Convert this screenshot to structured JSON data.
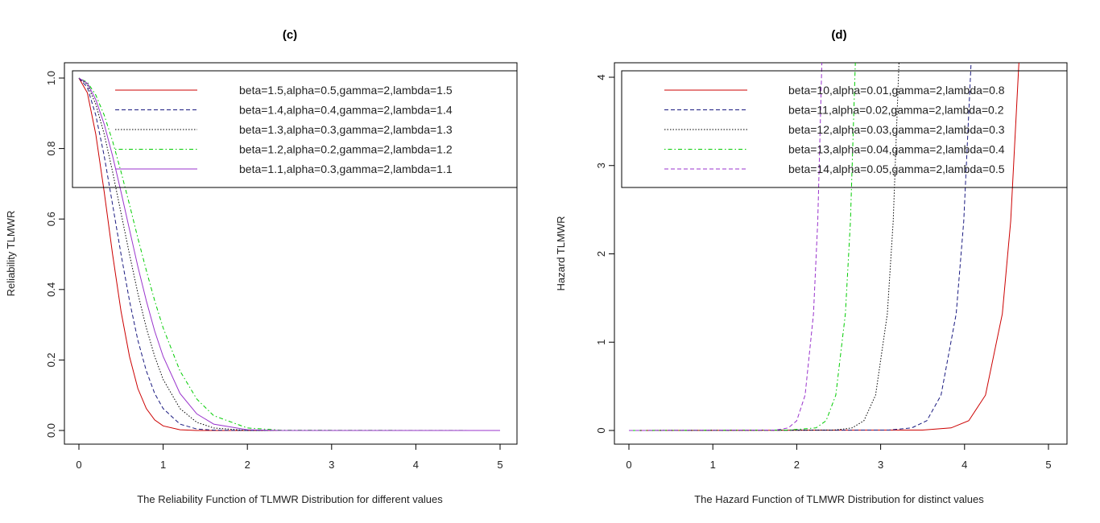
{
  "chart_data": [
    {
      "type": "line",
      "title": "(c)",
      "xlabel": "The Reliability Function of TLMWR Distribution for different values",
      "ylabel": "Reliability TLMWR",
      "xlim": [
        0,
        5
      ],
      "ylim": [
        0,
        1
      ],
      "xticks": [
        "0",
        "1",
        "2",
        "3",
        "4",
        "5"
      ],
      "yticks": [
        "0.0",
        "0.2",
        "0.4",
        "0.6",
        "0.8",
        "1.0"
      ],
      "grid": false,
      "legend_position": "top",
      "series": [
        {
          "name": "beta=1.5,alpha=0.5,gamma=2,lambda=1.5",
          "color": "#cc0000",
          "style": "solid",
          "x": [
            0,
            0.1,
            0.2,
            0.3,
            0.4,
            0.5,
            0.6,
            0.7,
            0.8,
            0.9,
            1.0,
            1.2,
            1.4,
            5
          ],
          "y": [
            1,
            0.958,
            0.841,
            0.677,
            0.5,
            0.338,
            0.21,
            0.119,
            0.062,
            0.03,
            0.013,
            0.002,
            0,
            0
          ]
        },
        {
          "name": "beta=1.4,alpha=0.4,gamma=2,lambda=1.4",
          "color": "#1a1a80",
          "style": "dashed",
          "x": [
            0,
            0.1,
            0.2,
            0.3,
            0.4,
            0.5,
            0.6,
            0.7,
            0.8,
            0.9,
            1.0,
            1.2,
            1.4,
            1.6,
            2.0,
            5
          ],
          "y": [
            1,
            0.973,
            0.895,
            0.779,
            0.641,
            0.5,
            0.368,
            0.256,
            0.169,
            0.105,
            0.062,
            0.018,
            0.004,
            0.001,
            0,
            0
          ]
        },
        {
          "name": "beta=1.3,alpha=0.3,gamma=2,lambda=1.3",
          "color": "#000000",
          "style": "dotted",
          "x": [
            0,
            0.1,
            0.2,
            0.3,
            0.4,
            0.5,
            0.6,
            0.7,
            0.8,
            0.9,
            1.0,
            1.2,
            1.4,
            1.6,
            2.0,
            5
          ],
          "y": [
            1,
            0.981,
            0.926,
            0.841,
            0.734,
            0.617,
            0.5,
            0.389,
            0.291,
            0.21,
            0.145,
            0.062,
            0.023,
            0.007,
            0,
            0
          ]
        },
        {
          "name": "beta=1.2,alpha=0.2,gamma=2,lambda=1.2",
          "color": "#00cc00",
          "style": "dotdash",
          "x": [
            0,
            0.1,
            0.2,
            0.3,
            0.4,
            0.5,
            0.6,
            0.7,
            0.8,
            0.9,
            1.0,
            1.2,
            1.4,
            1.6,
            2.0,
            2.4,
            5
          ],
          "y": [
            1,
            0.988,
            0.952,
            0.895,
            0.821,
            0.734,
            0.641,
            0.546,
            0.454,
            0.368,
            0.291,
            0.169,
            0.089,
            0.042,
            0.007,
            0.001,
            0
          ]
        },
        {
          "name": "beta=1.1,alpha=0.3,gamma=2,lambda=1.1",
          "color": "#9933cc",
          "style": "solid",
          "x": [
            0,
            0.1,
            0.2,
            0.3,
            0.4,
            0.5,
            0.6,
            0.7,
            0.8,
            0.9,
            1.0,
            1.2,
            1.4,
            1.6,
            2.0,
            2.4,
            5
          ],
          "y": [
            1,
            0.985,
            0.939,
            0.869,
            0.779,
            0.677,
            0.57,
            0.465,
            0.368,
            0.282,
            0.21,
            0.105,
            0.047,
            0.018,
            0.002,
            0,
            0
          ]
        }
      ]
    },
    {
      "type": "line",
      "title": "(d)",
      "xlabel": "The Hazard Function of TLMWR Distribution for distinct values",
      "ylabel": "Hazard TLMWR",
      "xlim": [
        0,
        5
      ],
      "ylim": [
        0,
        4.2
      ],
      "xticks": [
        "0",
        "1",
        "2",
        "3",
        "4",
        "5"
      ],
      "yticks": [
        "0",
        "1",
        "2",
        "3",
        "4"
      ],
      "grid": false,
      "legend_position": "top",
      "series": [
        {
          "name": "beta=10,alpha=0.01,gamma=2,lambda=0.8",
          "color": "#cc0000",
          "style": "solid",
          "x": [
            0,
            3.5,
            3.84,
            4.05,
            4.25,
            4.45,
            4.55,
            4.65
          ],
          "y": [
            0,
            0.005,
            0.029,
            0.11,
            0.4,
            1.32,
            2.37,
            4.2
          ]
        },
        {
          "name": "beta=11,alpha=0.02,gamma=2,lambda=0.2",
          "color": "#1a1a80",
          "style": "dashed",
          "x": [
            0,
            3.1,
            3.37,
            3.55,
            3.72,
            3.9,
            3.99,
            4.08
          ],
          "y": [
            0,
            0.005,
            0.029,
            0.11,
            0.4,
            1.32,
            2.37,
            4.2
          ]
        },
        {
          "name": "beta=12,alpha=0.03,gamma=2,lambda=0.3",
          "color": "#000000",
          "style": "dotted",
          "x": [
            0,
            2.45,
            2.66,
            2.8,
            2.94,
            3.08,
            3.15,
            3.22
          ],
          "y": [
            0,
            0.005,
            0.029,
            0.11,
            0.4,
            1.32,
            2.37,
            4.2
          ]
        },
        {
          "name": "beta=13,alpha=0.04,gamma=2,lambda=0.4",
          "color": "#00cc00",
          "style": "dotdash",
          "x": [
            0,
            1.9,
            2.23,
            2.35,
            2.465,
            2.58,
            2.64,
            2.7
          ],
          "y": [
            0,
            0.005,
            0.029,
            0.11,
            0.4,
            1.32,
            2.37,
            4.2
          ]
        },
        {
          "name": "beta=14,alpha=0.05,gamma=2,lambda=0.5",
          "color": "#9933cc",
          "style": "dashed",
          "x": [
            0,
            1.75,
            1.9,
            2.0,
            2.1,
            2.2,
            2.25,
            2.3
          ],
          "y": [
            0,
            0.005,
            0.029,
            0.11,
            0.4,
            1.32,
            2.37,
            4.2
          ]
        }
      ]
    }
  ]
}
